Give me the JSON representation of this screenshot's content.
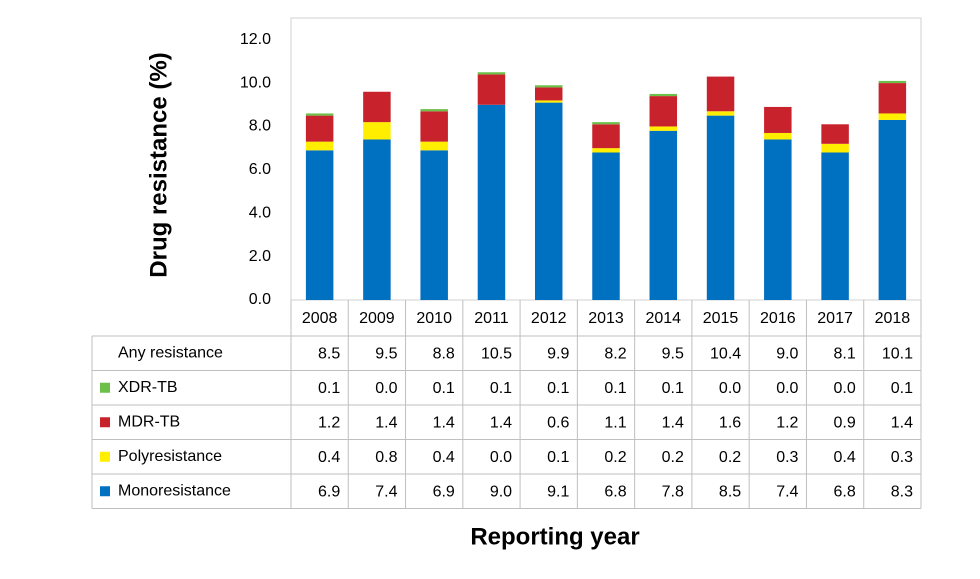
{
  "chart_data": {
    "type": "bar",
    "stacked": true,
    "y_axis_label": "Drug resistance (%)",
    "x_axis_label": "Reporting year",
    "categories": [
      "2008",
      "2009",
      "2010",
      "2011",
      "2012",
      "2013",
      "2014",
      "2015",
      "2016",
      "2017",
      "2018"
    ],
    "series": [
      {
        "name": "Monoresistance",
        "color": "#0070c0",
        "values": [
          6.9,
          7.4,
          6.9,
          9.0,
          9.1,
          6.8,
          7.8,
          8.5,
          7.4,
          6.8,
          8.3
        ],
        "value_labels": [
          "6.9",
          "7.4",
          "6.9",
          "9.0",
          "9.1",
          "6.8",
          "7.8",
          "8.5",
          "7.4",
          "6.8",
          "8.3"
        ]
      },
      {
        "name": "Polyresistance",
        "color": "#ffee00",
        "values": [
          0.4,
          0.8,
          0.4,
          0.0,
          0.1,
          0.2,
          0.2,
          0.2,
          0.3,
          0.4,
          0.3
        ],
        "value_labels": [
          "0.4",
          "0.8",
          "0.4",
          "0.0",
          "0.1",
          "0.2",
          "0.2",
          "0.2",
          "0.3",
          "0.4",
          "0.3"
        ]
      },
      {
        "name": "MDR-TB",
        "color": "#c8232c",
        "values": [
          1.2,
          1.4,
          1.4,
          1.4,
          0.6,
          1.1,
          1.4,
          1.6,
          1.2,
          0.9,
          1.4
        ],
        "value_labels": [
          "1.2",
          "1.4",
          "1.4",
          "1.4",
          "0.6",
          "1.1",
          "1.4",
          "1.6",
          "1.2",
          "0.9",
          "1.4"
        ]
      },
      {
        "name": "XDR-TB",
        "color": "#6cc04a",
        "values": [
          0.1,
          0.0,
          0.1,
          0.1,
          0.1,
          0.1,
          0.1,
          0.0,
          0.0,
          0.0,
          0.1
        ],
        "value_labels": [
          "0.1",
          "0.0",
          "0.1",
          "0.1",
          "0.1",
          "0.1",
          "0.1",
          "0.0",
          "0.0",
          "0.0",
          "0.1"
        ]
      }
    ],
    "totals": {
      "name": "Any resistance",
      "value_labels": [
        "8.5",
        "9.5",
        "8.8",
        "10.5",
        "9.9",
        "8.2",
        "9.5",
        "10.4",
        "9.0",
        "8.1",
        "10.1"
      ]
    },
    "ylim": [
      0,
      13
    ],
    "yticks": [
      {
        "value": 0,
        "label": "0.0"
      },
      {
        "value": 2,
        "label": "2.0"
      },
      {
        "value": 4,
        "label": "4.0"
      },
      {
        "value": 6,
        "label": "6.0"
      },
      {
        "value": 8,
        "label": "8.0"
      },
      {
        "value": 10,
        "label": "10.0"
      },
      {
        "value": 12,
        "label": "12.0"
      }
    ],
    "grid": false
  }
}
